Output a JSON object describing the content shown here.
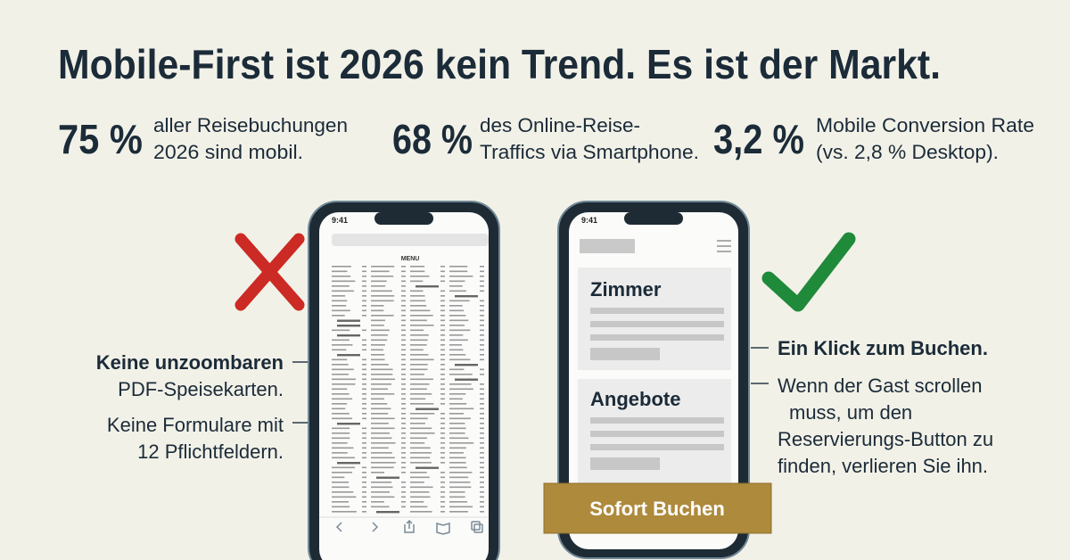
{
  "title": "Mobile-First ist 2026 kein Trend. Es ist der Markt.",
  "stats": [
    {
      "value": "75 %",
      "lines": [
        "aller Reisebuchungen",
        "2026 sind mobil."
      ]
    },
    {
      "value": "68 %",
      "lines": [
        "des Online-Reise-",
        "Traffics via Smartphone."
      ]
    },
    {
      "value": "3,2 %",
      "lines": [
        "Mobile Conversion Rate",
        "(vs. 2,8 % Desktop)."
      ]
    }
  ],
  "left_phone": {
    "time": "9:41",
    "menu_title": "MENU"
  },
  "right_phone": {
    "time": "9:41",
    "cards": [
      "Zimmer",
      "Angebote"
    ],
    "button": "Sofort Buchen"
  },
  "left_notes": [
    {
      "lines": [
        "Keine unzoombaren",
        "PDF-Speisekarten."
      ]
    },
    {
      "lines": [
        "Keine Formulare mit",
        "12 Pflichtfeldern."
      ]
    }
  ],
  "right_notes": {
    "headline": "Ein Klick zum Buchen.",
    "lines": [
      "Wenn der Gast scrollen",
      "muss, um den",
      "Reservierungs-Button zu",
      "finden, verlieren Sie ihn."
    ]
  }
}
